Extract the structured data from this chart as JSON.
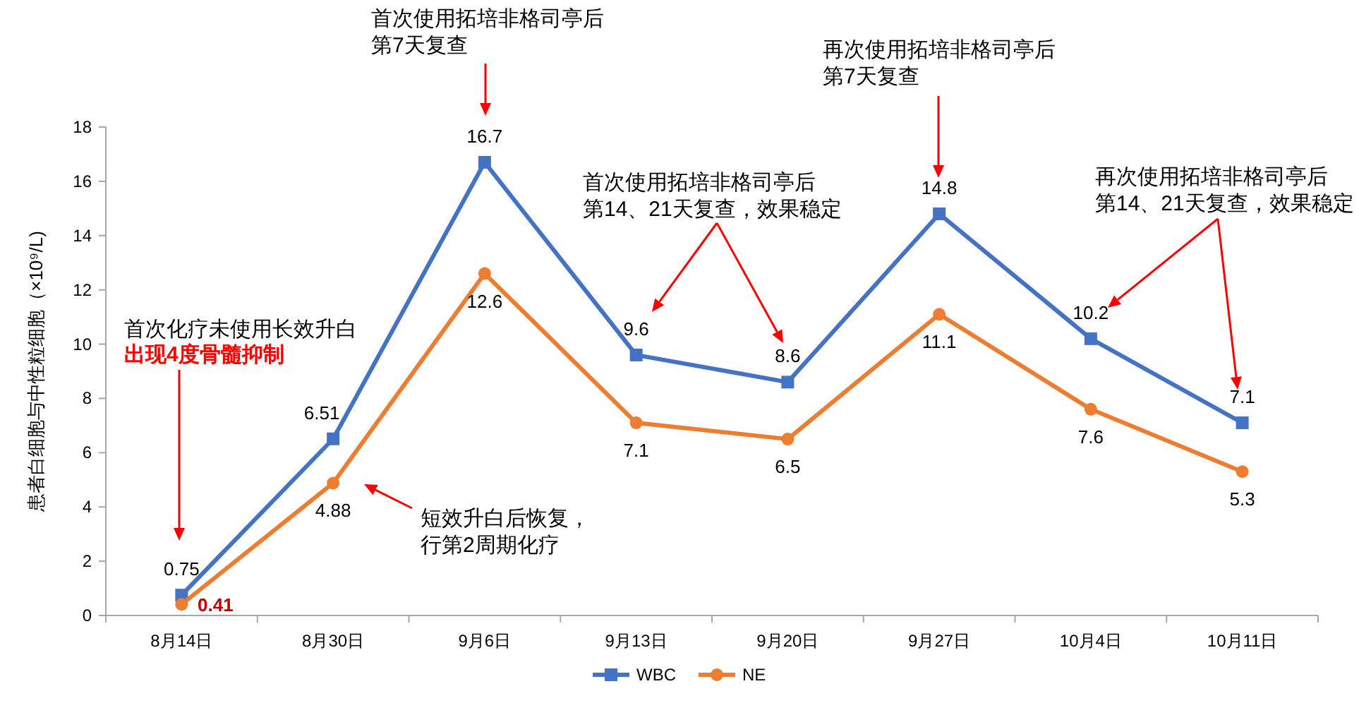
{
  "chart_data": {
    "type": "line",
    "ylabel": "患者白细胞与中性粒细胞（×10⁹/L)",
    "categories": [
      "8月14日",
      "8月30日",
      "9月6日",
      "9月13日",
      "9月20日",
      "9月27日",
      "10月4日",
      "10月11日"
    ],
    "series": [
      {
        "name": "WBC",
        "color": "#4472c4",
        "marker": "square",
        "values": [
          0.75,
          6.51,
          16.7,
          9.6,
          8.6,
          14.8,
          10.2,
          7.1
        ]
      },
      {
        "name": "NE",
        "color": "#ed7d31",
        "marker": "circle",
        "values": [
          0.41,
          4.88,
          12.6,
          7.1,
          6.5,
          11.1,
          7.6,
          5.3
        ]
      }
    ],
    "ylim": [
      0,
      18
    ],
    "yticks": [
      0,
      2,
      4,
      6,
      8,
      10,
      12,
      14,
      16,
      18
    ],
    "grid": false,
    "legend": "bottom",
    "data_labels": true,
    "line_style": "solid",
    "annotations": [
      "首次化疗未使用长效升白",
      "出现4度骨髓抑制",
      "短效升白后恢复，",
      "行第2周期化疗",
      "首次使用拓培非格司亭后",
      "第7天复查",
      "首次使用拓培非格司亭后",
      "第14、21天复查，效果稳定",
      "再次使用拓培非格司亭后",
      "第7天复查",
      "再次使用拓培非格司亭后",
      "第14、21天复查，效果稳定"
    ]
  }
}
